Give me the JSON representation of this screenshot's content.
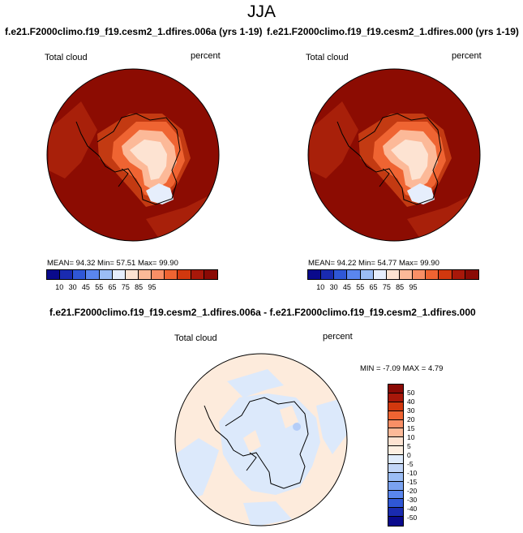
{
  "title": "JJA",
  "panels": {
    "left": {
      "title": "f.e21.F2000climo.f19_f19.cesm2_1.dfires.006a (yrs 1-19)",
      "variable": "Total cloud",
      "units": "percent",
      "stats": "MEAN= 94.32   Min=  57.51   Max=  99.90"
    },
    "right": {
      "title": "f.e21.F2000climo.f19_f19.cesm2_1.dfires.000 (yrs 1-19)",
      "variable": "Total cloud",
      "units": "percent",
      "stats": "MEAN= 94.22   Min=  54.77   Max=  99.90"
    },
    "diff": {
      "title": "f.e21.F2000climo.f19_f19.cesm2_1.dfires.006a - f.e21.F2000climo.f19_f19.cesm2_1.dfires.000",
      "variable": "Total cloud",
      "units": "percent",
      "stats": "MIN =  -7.09 MAX =   4.79"
    }
  },
  "colorbar_abs": {
    "colors": [
      "#0a0a8c",
      "#1a2bb0",
      "#2f57d6",
      "#5a86ee",
      "#9bbdf5",
      "#e6eefc",
      "#fde3d2",
      "#fcb998",
      "#f98f66",
      "#ef6432",
      "#d2380e",
      "#a8180a",
      "#8a0a05"
    ],
    "ticks": [
      "10",
      "30",
      "45",
      "55",
      "65",
      "75",
      "85",
      "95"
    ],
    "tick_after_index": [
      0,
      1,
      2,
      3,
      4,
      5,
      6,
      7
    ]
  },
  "colorbar_diff": {
    "colors_top_to_bottom": [
      "#8a0a05",
      "#a8180a",
      "#d2380e",
      "#ef6432",
      "#f98f66",
      "#fcb998",
      "#fde3d2",
      "#fdefe2",
      "#e0ecfc",
      "#c2d6f8",
      "#9bbdf5",
      "#7aa2f0",
      "#5a86ee",
      "#2f57d6",
      "#1a2bb0",
      "#0a0a8c"
    ],
    "ticks": [
      "50",
      "40",
      "30",
      "20",
      "15",
      "10",
      "5",
      "0",
      "-5",
      "-10",
      "-15",
      "-20",
      "-30",
      "-40",
      "-50"
    ]
  },
  "colors": {
    "ocean_dark_red": "#8c0c02",
    "ocean_red": "#a8200a",
    "diff_pos": "#fdebdc",
    "diff_neg": "#dce9fb"
  }
}
